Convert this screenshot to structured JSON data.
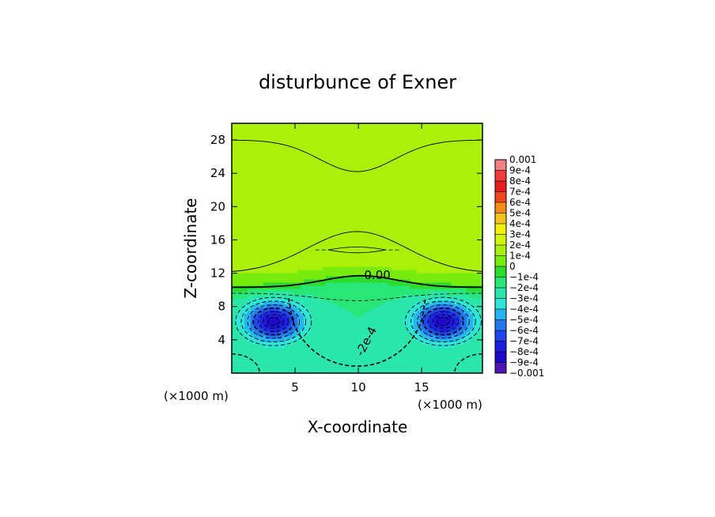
{
  "chart_data": {
    "type": "heatmap",
    "title": "disturbunce of Exner",
    "xlabel": "X-coordinate",
    "ylabel": "Z-coordinate",
    "x_unit_label": "(×1000 m)",
    "x_unit_label_right": "(×1000 m)",
    "xlim": [
      0,
      19.8
    ],
    "ylim": [
      0,
      30
    ],
    "x_ticks": [
      5,
      10,
      15
    ],
    "y_ticks": [
      4,
      8,
      12,
      16,
      20,
      24,
      28
    ],
    "contour_labels": [
      {
        "text": "0.00",
        "x": 11.5,
        "z": 11.3
      },
      {
        "text": "-2e-4",
        "x": 10.9,
        "z": 3.6
      }
    ],
    "colorbar": {
      "min": -0.001,
      "max": 0.001,
      "step": 0.0001,
      "labels": [
        "0.001",
        "9e-4",
        "8e-4",
        "7e-4",
        "6e-4",
        "5e-4",
        "4e-4",
        "3e-4",
        "2e-4",
        "1e-4",
        "0",
        "−1e-4",
        "−2e-4",
        "−3e-4",
        "−4e-4",
        "−5e-4",
        "−6e-4",
        "−7e-4",
        "−8e-4",
        "−9e-4",
        "−0.001"
      ],
      "colors": [
        "#f08080",
        "#f03c3c",
        "#e61e1e",
        "#f0461e",
        "#f58c14",
        "#f5c31e",
        "#f0f00a",
        "#d2f50a",
        "#aaf00a",
        "#78eb0f",
        "#2ddc2d",
        "#28e678",
        "#2ae6aa",
        "#2ee6d8",
        "#28b4f0",
        "#2378f0",
        "#1e46eb",
        "#1e1ee1",
        "#1e0ac8",
        "#5014b4"
      ]
    },
    "field": {
      "vortices": [
        {
          "x": 3.3,
          "z": 6.2,
          "min": -0.00085
        },
        {
          "x": 16.7,
          "z": 6.2,
          "min": -0.00085
        }
      ],
      "upper_level": 0.00012,
      "lower_background": -0.0002
    }
  }
}
